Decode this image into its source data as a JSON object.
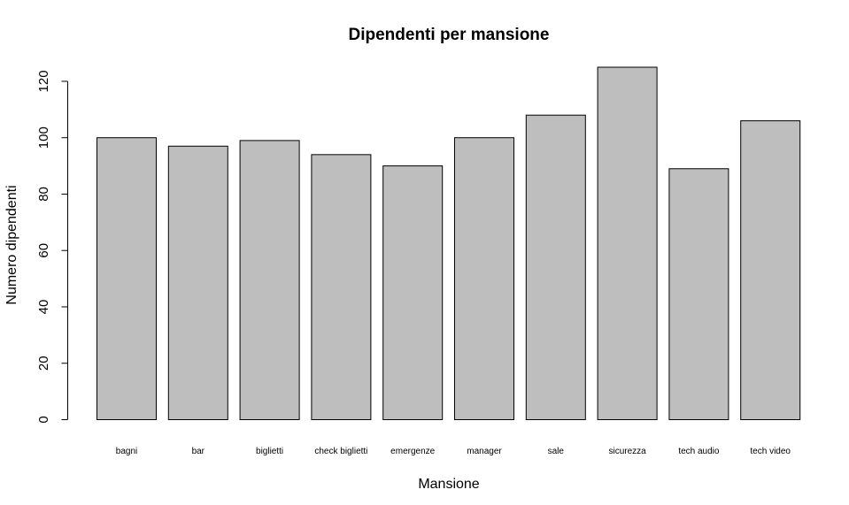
{
  "chart_data": {
    "type": "bar",
    "title": "Dipendenti per mansione",
    "xlabel": "Mansione",
    "ylabel": "Numero dipendenti",
    "categories": [
      "bagni",
      "bar",
      "biglietti",
      "check biglietti",
      "emergenze",
      "manager",
      "sale",
      "sicurezza",
      "tech audio",
      "tech video"
    ],
    "values": [
      100,
      97,
      99,
      94,
      90,
      100,
      108,
      125,
      89,
      106
    ],
    "ylim": [
      0,
      125
    ],
    "yticks": [
      "0",
      "20",
      "40",
      "60",
      "80",
      "100",
      "120"
    ],
    "grid": false,
    "bar_color": "#bebebe",
    "bar_stroke": "#000000"
  }
}
